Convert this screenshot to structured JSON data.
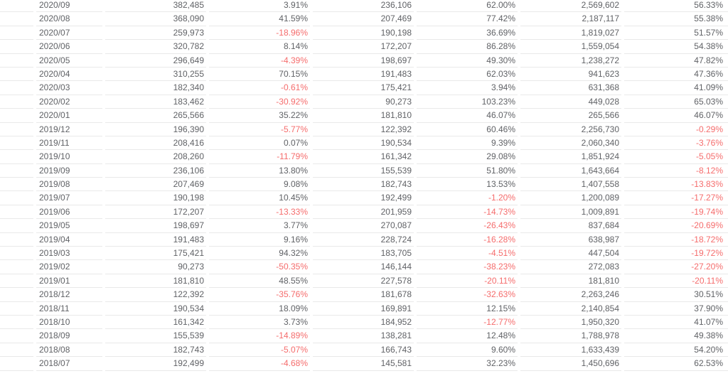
{
  "table": {
    "rows": [
      {
        "month": "2020/09",
        "values": [
          "382,485",
          "3.91%",
          "236,106",
          "62.00%",
          "2,569,602",
          "56.33%"
        ]
      },
      {
        "month": "2020/08",
        "values": [
          "368,090",
          "41.59%",
          "207,469",
          "77.42%",
          "2,187,117",
          "55.38%"
        ]
      },
      {
        "month": "2020/07",
        "values": [
          "259,973",
          "-18.96%",
          "190,198",
          "36.69%",
          "1,819,027",
          "51.57%"
        ]
      },
      {
        "month": "2020/06",
        "values": [
          "320,782",
          "8.14%",
          "172,207",
          "86.28%",
          "1,559,054",
          "54.38%"
        ]
      },
      {
        "month": "2020/05",
        "values": [
          "296,649",
          "-4.39%",
          "198,697",
          "49.30%",
          "1,238,272",
          "47.82%"
        ]
      },
      {
        "month": "2020/04",
        "values": [
          "310,255",
          "70.15%",
          "191,483",
          "62.03%",
          "941,623",
          "47.36%"
        ]
      },
      {
        "month": "2020/03",
        "values": [
          "182,340",
          "-0.61%",
          "175,421",
          "3.94%",
          "631,368",
          "41.09%"
        ]
      },
      {
        "month": "2020/02",
        "values": [
          "183,462",
          "-30.92%",
          "90,273",
          "103.23%",
          "449,028",
          "65.03%"
        ]
      },
      {
        "month": "2020/01",
        "values": [
          "265,566",
          "35.22%",
          "181,810",
          "46.07%",
          "265,566",
          "46.07%"
        ]
      },
      {
        "month": "2019/12",
        "values": [
          "196,390",
          "-5.77%",
          "122,392",
          "60.46%",
          "2,256,730",
          "-0.29%"
        ]
      },
      {
        "month": "2019/11",
        "values": [
          "208,416",
          "0.07%",
          "190,534",
          "9.39%",
          "2,060,340",
          "-3.76%"
        ]
      },
      {
        "month": "2019/10",
        "values": [
          "208,260",
          "-11.79%",
          "161,342",
          "29.08%",
          "1,851,924",
          "-5.05%"
        ]
      },
      {
        "month": "2019/09",
        "values": [
          "236,106",
          "13.80%",
          "155,539",
          "51.80%",
          "1,643,664",
          "-8.12%"
        ]
      },
      {
        "month": "2019/08",
        "values": [
          "207,469",
          "9.08%",
          "182,743",
          "13.53%",
          "1,407,558",
          "-13.83%"
        ]
      },
      {
        "month": "2019/07",
        "values": [
          "190,198",
          "10.45%",
          "192,499",
          "-1.20%",
          "1,200,089",
          "-17.27%"
        ]
      },
      {
        "month": "2019/06",
        "values": [
          "172,207",
          "-13.33%",
          "201,959",
          "-14.73%",
          "1,009,891",
          "-19.74%"
        ]
      },
      {
        "month": "2019/05",
        "values": [
          "198,697",
          "3.77%",
          "270,087",
          "-26.43%",
          "837,684",
          "-20.69%"
        ]
      },
      {
        "month": "2019/04",
        "values": [
          "191,483",
          "9.16%",
          "228,724",
          "-16.28%",
          "638,987",
          "-18.72%"
        ]
      },
      {
        "month": "2019/03",
        "values": [
          "175,421",
          "94.32%",
          "183,705",
          "-4.51%",
          "447,504",
          "-19.72%"
        ]
      },
      {
        "month": "2019/02",
        "values": [
          "90,273",
          "-50.35%",
          "146,144",
          "-38.23%",
          "272,083",
          "-27.20%"
        ]
      },
      {
        "month": "2019/01",
        "values": [
          "181,810",
          "48.55%",
          "227,578",
          "-20.11%",
          "181,810",
          "-20.11%"
        ]
      },
      {
        "month": "2018/12",
        "values": [
          "122,392",
          "-35.76%",
          "181,678",
          "-32.63%",
          "2,263,246",
          "30.51%"
        ]
      },
      {
        "month": "2018/11",
        "values": [
          "190,534",
          "18.09%",
          "169,891",
          "12.15%",
          "2,140,854",
          "37.90%"
        ]
      },
      {
        "month": "2018/10",
        "values": [
          "161,342",
          "3.73%",
          "184,952",
          "-12.77%",
          "1,950,320",
          "41.07%"
        ]
      },
      {
        "month": "2018/09",
        "values": [
          "155,539",
          "-14.89%",
          "138,281",
          "12.48%",
          "1,788,978",
          "49.38%"
        ]
      },
      {
        "month": "2018/08",
        "values": [
          "182,743",
          "-5.07%",
          "166,743",
          "9.60%",
          "1,633,439",
          "54.20%"
        ]
      },
      {
        "month": "2018/07",
        "values": [
          "192,499",
          "-4.68%",
          "145,581",
          "32.23%",
          "1,450,696",
          "62.53%"
        ]
      }
    ]
  },
  "colors": {
    "text": "#606266",
    "negative": "#f56c6c",
    "border": "#e9e9e9",
    "background": "#ffffff"
  }
}
